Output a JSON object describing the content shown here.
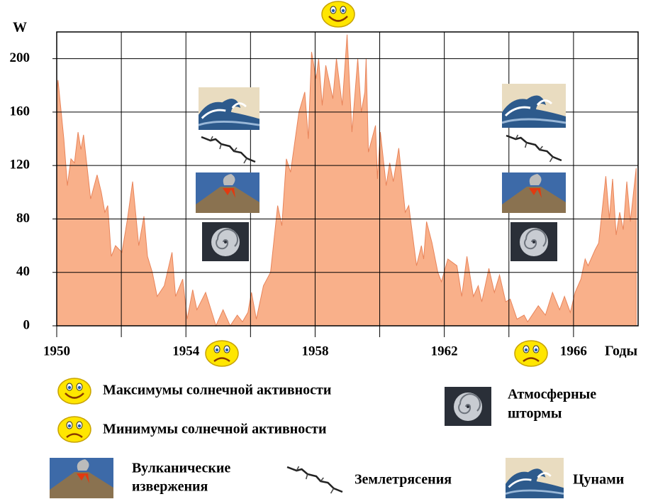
{
  "chart_data": {
    "type": "area",
    "y_label": "W",
    "x_label": "Годы",
    "x": [
      1950,
      1950.04,
      1950.22,
      1950.33,
      1950.44,
      1950.55,
      1950.66,
      1950.75,
      1950.83,
      1951.05,
      1951.25,
      1951.38,
      1951.49,
      1951.58,
      1951.69,
      1951.82,
      1952.02,
      1952.19,
      1952.35,
      1952.54,
      1952.7,
      1952.81,
      1952.96,
      1953.11,
      1953.33,
      1953.57,
      1953.68,
      1953.9,
      1954.04,
      1954.21,
      1954.34,
      1954.61,
      1954.93,
      1955.15,
      1955.37,
      1955.59,
      1955.75,
      1955.92,
      1956.03,
      1956.18,
      1956.4,
      1956.62,
      1956.84,
      1956.97,
      1957.11,
      1957.24,
      1957.5,
      1957.68,
      1957.79,
      1957.89,
      1958.03,
      1958.11,
      1958.22,
      1958.33,
      1958.55,
      1958.66,
      1958.84,
      1958.99,
      1959.14,
      1959.32,
      1959.43,
      1959.54,
      1959.58,
      1959.65,
      1959.87,
      1959.93,
      1960.02,
      1960.2,
      1960.31,
      1960.42,
      1960.59,
      1960.79,
      1960.9,
      1961.14,
      1961.29,
      1961.36,
      1961.45,
      1961.62,
      1961.8,
      1961.91,
      1962.11,
      1962.39,
      1962.54,
      1962.7,
      1962.9,
      1963.05,
      1963.16,
      1963.38,
      1963.55,
      1963.71,
      1963.9,
      1964.04,
      1964.25,
      1964.47,
      1964.58,
      1964.91,
      1965.13,
      1965.35,
      1965.57,
      1965.72,
      1965.9,
      1966.05,
      1966.23,
      1966.36,
      1966.45,
      1966.67,
      1966.78,
      1967,
      1967.11,
      1967.21,
      1967.32,
      1967.43,
      1967.54,
      1967.65,
      1967.76,
      1967.94
    ],
    "values": [
      175,
      184,
      140,
      105,
      125,
      122,
      145,
      132,
      143,
      95,
      113,
      100,
      85,
      90,
      52,
      60,
      55,
      80,
      108,
      60,
      82,
      52,
      40,
      22,
      30,
      55,
      22,
      35,
      5,
      27,
      12,
      25,
      0,
      12,
      0,
      8,
      3,
      10,
      25,
      5,
      30,
      40,
      90,
      75,
      125,
      115,
      160,
      175,
      140,
      205,
      185,
      200,
      165,
      195,
      170,
      200,
      165,
      218,
      145,
      200,
      160,
      175,
      200,
      130,
      150,
      110,
      145,
      105,
      122,
      108,
      133,
      85,
      90,
      45,
      60,
      50,
      78,
      62,
      40,
      33,
      50,
      45,
      22,
      52,
      22,
      30,
      18,
      43,
      25,
      38,
      18,
      20,
      5,
      8,
      3,
      15,
      8,
      25,
      12,
      22,
      10,
      25,
      35,
      50,
      45,
      57,
      62,
      112,
      80,
      110,
      68,
      85,
      72,
      108,
      78,
      118
    ],
    "color": "#f9b08a",
    "line_color": "#e8845a",
    "xlim": [
      1950,
      1968
    ],
    "xticks": [
      1950,
      1954,
      1958,
      1962,
      1966
    ],
    "x_minor_ticks": [
      1952,
      1956,
      1960,
      1964
    ],
    "ylim": [
      0,
      220
    ],
    "yticks": [
      0,
      40,
      80,
      120,
      160,
      200
    ],
    "grid": true
  },
  "legend": {
    "max": "Максимумы солнечной активности",
    "min": "Минимумы солнечной активности",
    "storms": [
      "Атмосферные",
      "штормы"
    ],
    "volcano": [
      "Вулканические",
      "извержения"
    ],
    "earthquake": "Землетрясения",
    "tsunami": "Цунами"
  }
}
